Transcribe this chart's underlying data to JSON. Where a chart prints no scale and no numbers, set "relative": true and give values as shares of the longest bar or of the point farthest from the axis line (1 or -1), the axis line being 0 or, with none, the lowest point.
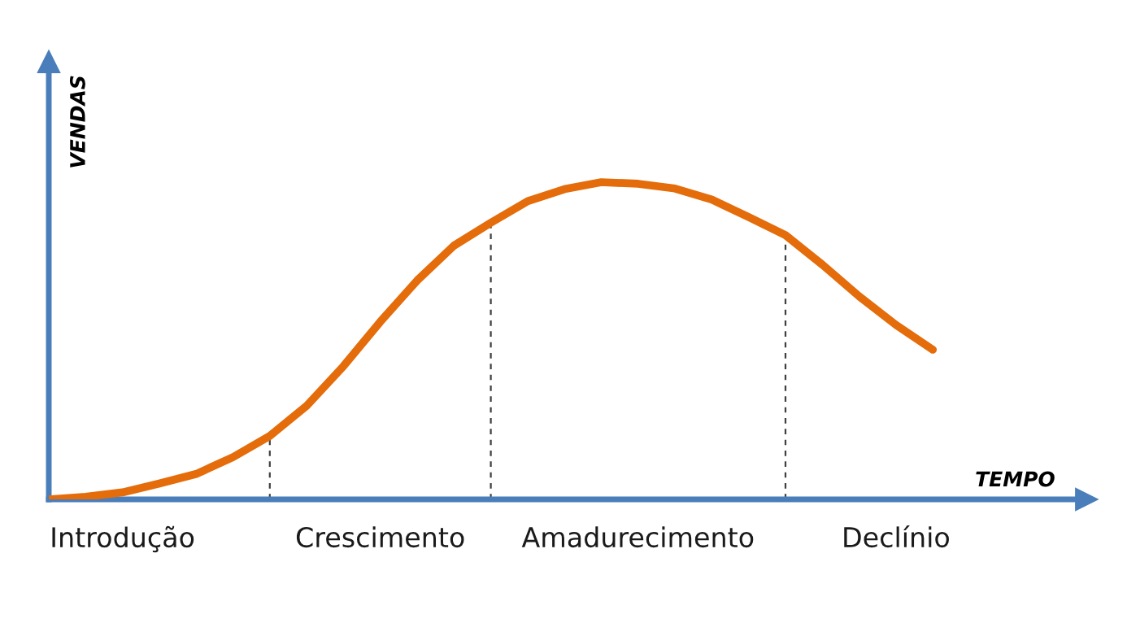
{
  "chart_data": {
    "type": "line",
    "relative": true,
    "xlabel": "TEMPO",
    "ylabel": "VENDAS",
    "line_style": "solid",
    "categories": [
      null,
      null,
      "Introdução",
      null,
      null,
      null,
      null,
      null,
      null,
      "Crescimento",
      null,
      null,
      null,
      null,
      null,
      null,
      "Amadurecimento",
      null,
      null,
      null,
      null,
      null,
      null,
      "Declínio",
      null
    ],
    "series": [
      {
        "color": "#e46c0a",
        "values": [
          0,
          0.008,
          0.022,
          0.05,
          0.08,
          0.133,
          0.2,
          0.295,
          0.42,
          0.56,
          0.69,
          0.8,
          0.872,
          0.94,
          0.978,
          1,
          0.995,
          0.98,
          0.945,
          0.89,
          0.833,
          0.74,
          0.64,
          0.55,
          0.472
        ]
      }
    ]
  }
}
